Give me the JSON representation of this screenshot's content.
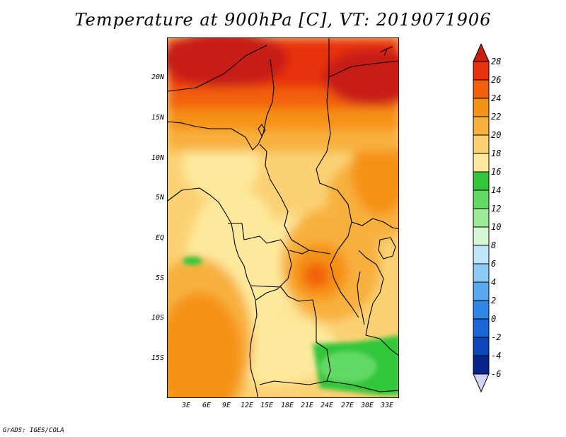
{
  "title": "Temperature at 900hPa [C], VT: 2019071906",
  "footer": "GrADS: IGES/COLA",
  "axes": {
    "lat_labels": [
      "20N",
      "15N",
      "10N",
      "5N",
      "EQ",
      "5S",
      "10S",
      "15S"
    ],
    "lon_labels": [
      "3E",
      "6E",
      "9E",
      "12E",
      "15E",
      "18E",
      "21E",
      "24E",
      "27E",
      "30E",
      "33E"
    ]
  },
  "colorbar": {
    "levels": [
      "28",
      "26",
      "24",
      "22",
      "20",
      "18",
      "16",
      "14",
      "12",
      "10",
      "8",
      "6",
      "4",
      "2",
      "0",
      "-2",
      "-4",
      "-6"
    ],
    "colors": {
      "gt28": "#c81e12",
      "26_28": "#e8310e",
      "24_26": "#f2600c",
      "22_24": "#f59218",
      "20_22": "#f8b03c",
      "18_20": "#fbd174",
      "16_18": "#fde99c",
      "14_16": "#33c63a",
      "12_14": "#64d965",
      "10_12": "#9ee998",
      "8_10": "#d6f7d4",
      "6_8": "#bfe6f8",
      "4_6": "#8ecbf4",
      "2_4": "#5aa8ee",
      "0_2": "#2f86e6",
      "m2_0": "#1c66d8",
      "m4_m2": "#0c46b8",
      "m6_m4": "#06248a",
      "lt_m6": "#03105a",
      "below_arrow": "#d2d2f4"
    }
  }
}
